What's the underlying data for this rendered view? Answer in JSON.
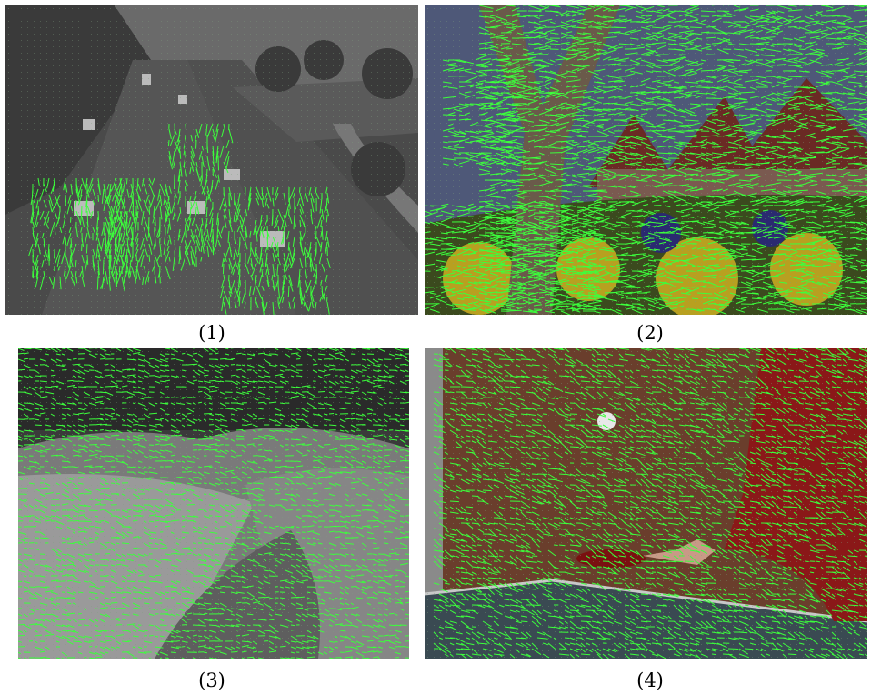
{
  "figure": {
    "panels": [
      {
        "id": "traffic",
        "caption": "(1)"
      },
      {
        "id": "garden",
        "caption": "(2)"
      },
      {
        "id": "terrain",
        "caption": "(3)"
      },
      {
        "id": "pingpong",
        "caption": "(4)"
      }
    ]
  },
  "colors": {
    "vector": "#3cff3c"
  }
}
